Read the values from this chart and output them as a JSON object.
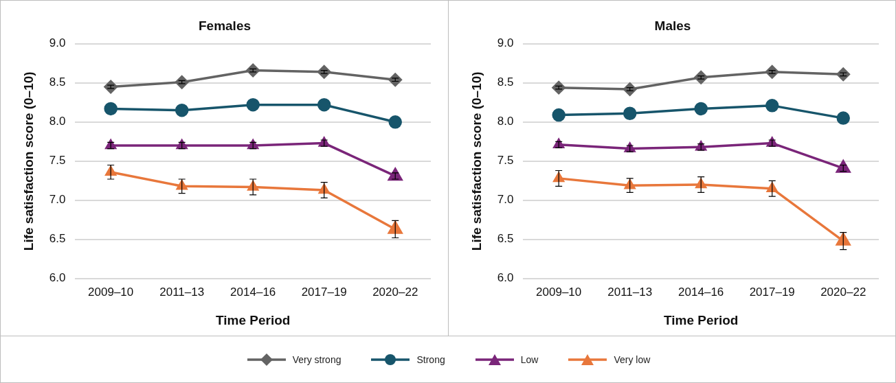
{
  "chart_data": [
    {
      "type": "line",
      "title": "Females",
      "xlabel": "Time Period",
      "ylabel": "Life satisfaction score (0–10)",
      "categories": [
        "2009–10",
        "2011–13",
        "2014–16",
        "2017–19",
        "2020–22"
      ],
      "ylim": [
        6.0,
        9.0
      ],
      "yticks": [
        {
          "value": 6,
          "label": "6.0"
        },
        {
          "value": 6.5,
          "label": "6.5"
        },
        {
          "value": 7,
          "label": "7.0"
        },
        {
          "value": 7.5,
          "label": "7.5"
        },
        {
          "value": 8,
          "label": "8.0"
        },
        {
          "value": 8.5,
          "label": "8.5"
        },
        {
          "value": 9,
          "label": "9.0"
        }
      ],
      "grid": "y",
      "legend": "bottom",
      "line_style": "solid",
      "series": [
        {
          "name": "Very strong",
          "color": "#636363",
          "marker": "diamond",
          "values": [
            8.45,
            8.51,
            8.66,
            8.64,
            8.54
          ],
          "errors": [
            0.02,
            0.02,
            0.02,
            0.02,
            0.02
          ]
        },
        {
          "name": "Strong",
          "color": "#17556b",
          "marker": "circle",
          "values": [
            8.17,
            8.15,
            8.22,
            8.22,
            8.0
          ]
        },
        {
          "name": "Low",
          "color": "#7a2579",
          "marker": "triangle",
          "values": [
            7.7,
            7.7,
            7.7,
            7.73,
            7.31
          ],
          "errors": [
            0.04,
            0.04,
            0.04,
            0.04,
            0.04
          ]
        },
        {
          "name": "Very low",
          "color": "#e8773b",
          "marker": "triangle",
          "values": [
            7.36,
            7.18,
            7.17,
            7.13,
            6.63
          ],
          "errors": [
            0.09,
            0.09,
            0.1,
            0.1,
            0.11
          ]
        }
      ]
    },
    {
      "type": "line",
      "title": "Males",
      "xlabel": "Time Period",
      "ylabel": "Life satisfaction score (0–10)",
      "categories": [
        "2009–10",
        "2011–13",
        "2014–16",
        "2017–19",
        "2020–22"
      ],
      "ylim": [
        6.0,
        9.0
      ],
      "yticks": [
        {
          "value": 6,
          "label": "6.0"
        },
        {
          "value": 6.5,
          "label": "6.5"
        },
        {
          "value": 7,
          "label": "7.0"
        },
        {
          "value": 7.5,
          "label": "7.5"
        },
        {
          "value": 8,
          "label": "8.0"
        },
        {
          "value": 8.5,
          "label": "8.5"
        },
        {
          "value": 9,
          "label": "9.0"
        }
      ],
      "grid": "y",
      "legend": "bottom",
      "line_style": "solid",
      "series": [
        {
          "name": "Very strong",
          "color": "#636363",
          "marker": "diamond",
          "values": [
            8.44,
            8.42,
            8.57,
            8.64,
            8.61
          ],
          "errors": [
            0.02,
            0.02,
            0.02,
            0.02,
            0.02
          ]
        },
        {
          "name": "Strong",
          "color": "#17556b",
          "marker": "circle",
          "values": [
            8.09,
            8.11,
            8.17,
            8.21,
            8.05
          ]
        },
        {
          "name": "Low",
          "color": "#7a2579",
          "marker": "triangle",
          "values": [
            7.71,
            7.66,
            7.68,
            7.73,
            7.41
          ],
          "errors": [
            0.04,
            0.04,
            0.04,
            0.04,
            0.04
          ]
        },
        {
          "name": "Very low",
          "color": "#e8773b",
          "marker": "triangle",
          "values": [
            7.28,
            7.19,
            7.2,
            7.15,
            6.48
          ],
          "errors": [
            0.1,
            0.09,
            0.1,
            0.1,
            0.11
          ]
        }
      ]
    }
  ]
}
